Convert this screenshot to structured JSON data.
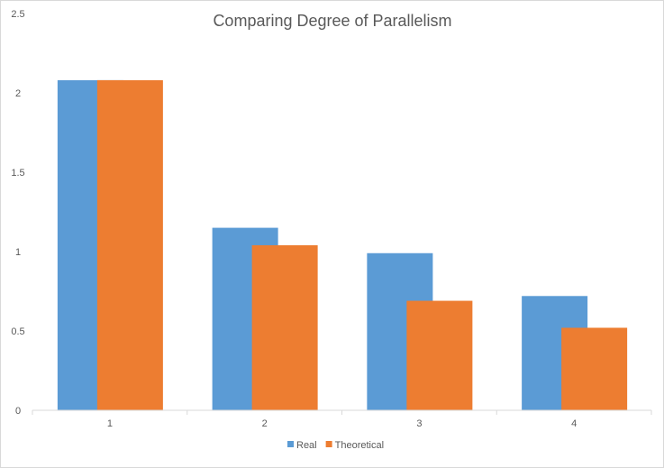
{
  "chart_data": {
    "type": "bar",
    "title": "Comparing Degree of Parallelism",
    "xlabel": "",
    "ylabel": "",
    "categories": [
      "1",
      "2",
      "3",
      "4"
    ],
    "series": [
      {
        "name": "Real",
        "color": "#5b9bd5",
        "values": [
          2.08,
          1.15,
          0.99,
          0.72
        ]
      },
      {
        "name": "Theoretical",
        "color": "#ed7d31",
        "values": [
          2.08,
          1.04,
          0.69,
          0.52
        ]
      }
    ],
    "ylim": [
      0,
      2.5
    ],
    "yticks": [
      "0",
      "0.5",
      "1",
      "1.5",
      "2",
      "2.5"
    ],
    "grid": false,
    "legend": "bottom"
  }
}
